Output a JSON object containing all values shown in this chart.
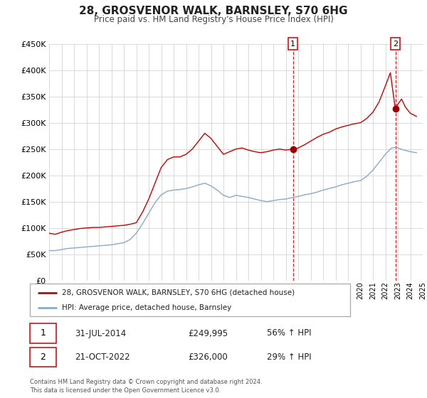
{
  "title": "28, GROSVENOR WALK, BARNSLEY, S70 6HG",
  "subtitle": "Price paid vs. HM Land Registry's House Price Index (HPI)",
  "legend_label1": "28, GROSVENOR WALK, BARNSLEY, S70 6HG (detached house)",
  "legend_label2": "HPI: Average price, detached house, Barnsley",
  "transaction1_label": "31-JUL-2014",
  "transaction1_price": "£249,995",
  "transaction1_hpi": "56% ↑ HPI",
  "transaction1_year": 2014.58,
  "transaction1_value": 249995,
  "transaction2_label": "21-OCT-2022",
  "transaction2_price": "£326,000",
  "transaction2_hpi": "29% ↑ HPI",
  "transaction2_year": 2022.8,
  "transaction2_value": 326000,
  "footer": "Contains HM Land Registry data © Crown copyright and database right 2024.\nThis data is licensed under the Open Government Licence v3.0.",
  "red_color": "#cc0000",
  "blue_color": "#88aacc",
  "marker_color": "#990000",
  "dashed_color": "#cc0000",
  "ylim": [
    0,
    450000
  ],
  "yticks": [
    0,
    50000,
    100000,
    150000,
    200000,
    250000,
    300000,
    350000,
    400000,
    450000
  ],
  "red_x": [
    1995.0,
    1995.5,
    1996.0,
    1996.5,
    1997.0,
    1997.5,
    1998.0,
    1998.5,
    1999.0,
    1999.5,
    2000.0,
    2000.5,
    2001.0,
    2001.5,
    2002.0,
    2002.5,
    2003.0,
    2003.5,
    2004.0,
    2004.5,
    2005.0,
    2005.5,
    2006.0,
    2006.5,
    2007.0,
    2007.5,
    2008.0,
    2008.5,
    2009.0,
    2009.5,
    2010.0,
    2010.5,
    2011.0,
    2011.5,
    2012.0,
    2012.5,
    2013.0,
    2013.5,
    2014.0,
    2014.58,
    2015.0,
    2015.5,
    2016.0,
    2016.5,
    2017.0,
    2017.5,
    2018.0,
    2018.5,
    2019.0,
    2019.5,
    2020.0,
    2020.5,
    2021.0,
    2021.5,
    2022.0,
    2022.4,
    2022.8,
    2023.0,
    2023.3,
    2023.6,
    2024.0,
    2024.5
  ],
  "red_y": [
    90000,
    88000,
    92000,
    95000,
    97000,
    99000,
    100000,
    101000,
    101000,
    102000,
    103000,
    104000,
    105000,
    107000,
    110000,
    130000,
    155000,
    185000,
    215000,
    230000,
    235000,
    235000,
    240000,
    250000,
    265000,
    280000,
    270000,
    255000,
    240000,
    245000,
    250000,
    252000,
    248000,
    245000,
    243000,
    245000,
    248000,
    250000,
    248000,
    249995,
    252000,
    258000,
    265000,
    272000,
    278000,
    282000,
    288000,
    292000,
    295000,
    298000,
    300000,
    308000,
    320000,
    340000,
    370000,
    395000,
    326000,
    335000,
    345000,
    330000,
    318000,
    312000
  ],
  "blue_x": [
    1995.0,
    1995.5,
    1996.0,
    1996.5,
    1997.0,
    1997.5,
    1998.0,
    1998.5,
    1999.0,
    1999.5,
    2000.0,
    2000.5,
    2001.0,
    2001.5,
    2002.0,
    2002.5,
    2003.0,
    2003.5,
    2004.0,
    2004.5,
    2005.0,
    2005.5,
    2006.0,
    2006.5,
    2007.0,
    2007.5,
    2008.0,
    2008.5,
    2009.0,
    2009.5,
    2010.0,
    2010.5,
    2011.0,
    2011.5,
    2012.0,
    2012.5,
    2013.0,
    2013.5,
    2014.0,
    2014.58,
    2015.0,
    2015.5,
    2016.0,
    2016.5,
    2017.0,
    2017.5,
    2018.0,
    2018.5,
    2019.0,
    2019.5,
    2020.0,
    2020.5,
    2021.0,
    2021.5,
    2022.0,
    2022.5,
    2022.8,
    2023.0,
    2023.5,
    2024.0,
    2024.5
  ],
  "blue_y": [
    57000,
    57000,
    59000,
    61000,
    62000,
    63000,
    64000,
    65000,
    66000,
    67000,
    68000,
    70000,
    72000,
    78000,
    90000,
    108000,
    128000,
    148000,
    163000,
    170000,
    172000,
    173000,
    175000,
    178000,
    182000,
    185000,
    180000,
    172000,
    162000,
    158000,
    162000,
    160000,
    158000,
    155000,
    152000,
    150000,
    152000,
    154000,
    155000,
    158000,
    160000,
    163000,
    165000,
    168000,
    172000,
    175000,
    178000,
    182000,
    185000,
    188000,
    190000,
    198000,
    210000,
    225000,
    240000,
    252000,
    253000,
    252000,
    248000,
    245000,
    243000
  ]
}
